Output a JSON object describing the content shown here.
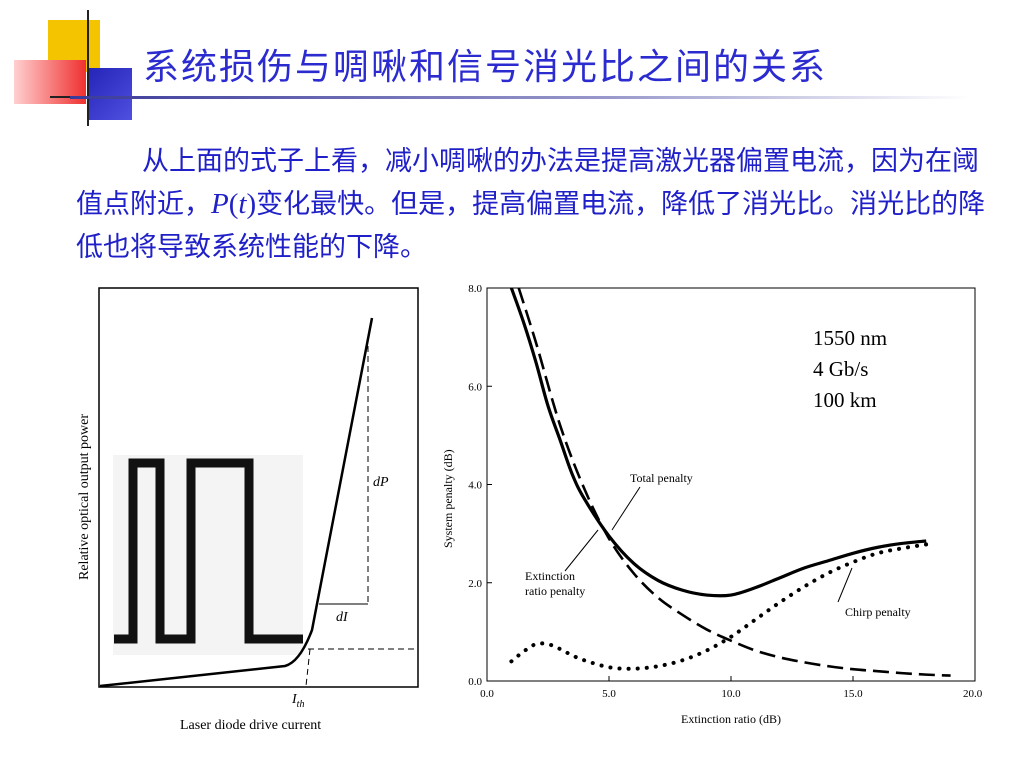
{
  "slide": {
    "title": "系统损伤与啁啾和信号消光比之间的关系",
    "para_part1": "从上面的式子上看，减小啁啾的办法是提高激光器偏置电流，因为在阈值点附近，",
    "para_P": "P",
    "para_lp": "(",
    "para_t": "t",
    "para_rp": ")",
    "para_part2": "变化最快。但是，提高偏置电流，降低了消光比。消光比的降低也将导致系统性能的下降。"
  },
  "diagram": {
    "ylabel": "Relative optical output power",
    "xlabel": "Laser diode drive current",
    "label_dP": "dP",
    "label_dI": "dI",
    "label_Ith_main": "I",
    "label_Ith_sub": "th"
  },
  "chart_data": {
    "type": "line",
    "xlabel": "Extinction ratio (dB)",
    "ylabel": "System penalty (dB)",
    "xlim": [
      0,
      20
    ],
    "ylim": [
      0,
      8
    ],
    "xticks": [
      "0.0",
      "5.0",
      "10.0",
      "15.0",
      "20.0"
    ],
    "yticks": [
      "0.0",
      "2.0",
      "4.0",
      "6.0",
      "8.0"
    ],
    "info": [
      "1550 nm",
      "4 Gb/s",
      "100 km"
    ],
    "series": [
      {
        "name": "Total penalty",
        "style": "solid",
        "x": [
          1.0,
          1.5,
          2.0,
          2.5,
          3.0,
          3.5,
          4.0,
          5.0,
          6.0,
          7.0,
          8.0,
          9.0,
          10.0,
          11.0,
          12.0,
          13.0,
          14.0,
          15.0,
          16.0,
          17.0,
          18.0
        ],
        "y": [
          8.0,
          7.3,
          6.5,
          5.6,
          4.9,
          4.2,
          3.7,
          2.95,
          2.4,
          2.05,
          1.85,
          1.75,
          1.75,
          1.9,
          2.1,
          2.3,
          2.45,
          2.6,
          2.72,
          2.8,
          2.85
        ]
      },
      {
        "name": "Extinction ratio penalty",
        "style": "dashed",
        "x": [
          1.3,
          2.0,
          3.0,
          4.0,
          5.0,
          6.0,
          7.0,
          8.0,
          9.0,
          10.0,
          11.0,
          12.0,
          13.0,
          14.0,
          15.0,
          16.0,
          17.0,
          18.0,
          19.0
        ],
        "y": [
          8.0,
          6.9,
          5.2,
          3.9,
          2.9,
          2.2,
          1.7,
          1.35,
          1.05,
          0.82,
          0.62,
          0.48,
          0.38,
          0.3,
          0.24,
          0.2,
          0.16,
          0.13,
          0.11
        ]
      },
      {
        "name": "Chirp penalty",
        "style": "dotted",
        "x": [
          1.0,
          1.5,
          2.0,
          2.5,
          3.0,
          3.5,
          4.0,
          5.0,
          6.0,
          7.0,
          8.0,
          9.0,
          10.0,
          11.0,
          12.0,
          13.0,
          14.0,
          15.0,
          16.0,
          17.0,
          18.0
        ],
        "y": [
          0.4,
          0.6,
          0.75,
          0.75,
          0.65,
          0.52,
          0.42,
          0.28,
          0.25,
          0.3,
          0.42,
          0.62,
          0.9,
          1.25,
          1.6,
          1.92,
          2.2,
          2.42,
          2.6,
          2.7,
          2.78
        ]
      }
    ]
  },
  "theme": {
    "title_color": "#2b2bd0",
    "text_color": "#2020c8",
    "deco_yellow": "#f5c400",
    "deco_red": "#f03030",
    "deco_blue": "#2424b8"
  }
}
